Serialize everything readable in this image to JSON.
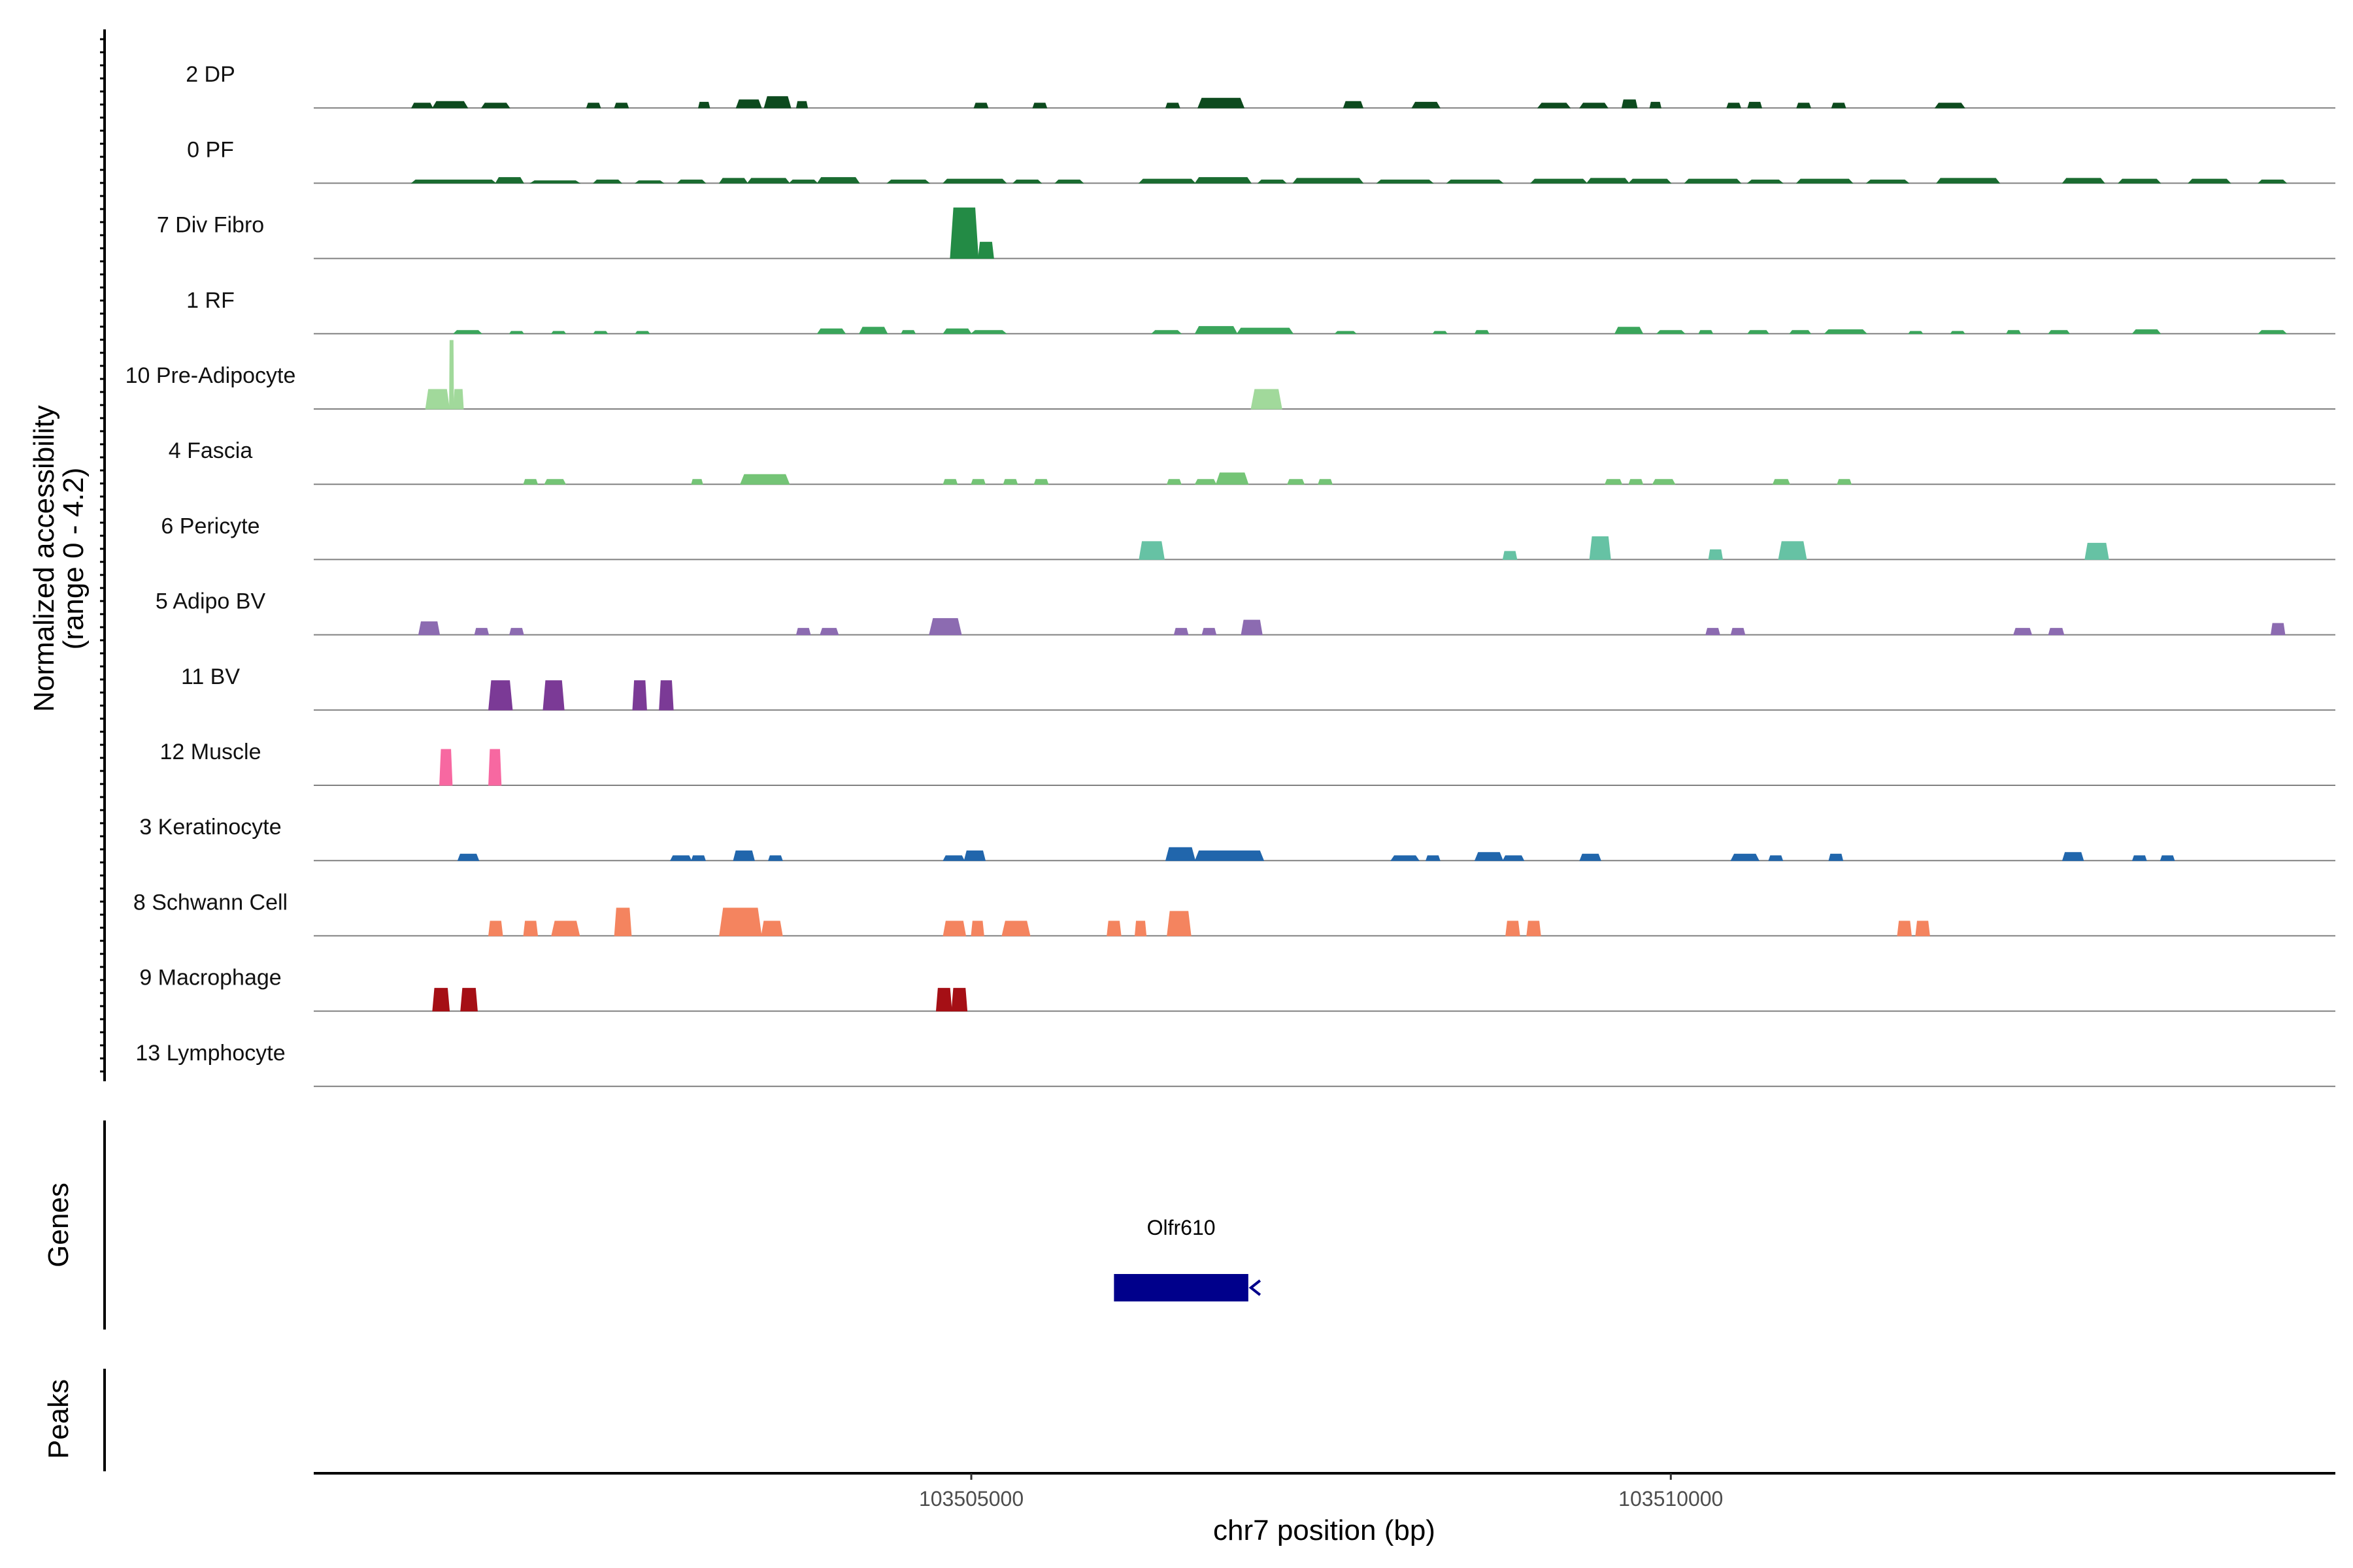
{
  "chart_data": {
    "type": "area",
    "chromosome": "chr7",
    "xlim": [
      103500300,
      103514750
    ],
    "x_ticks": [
      103505000,
      103510000
    ],
    "x_tick_labels": [
      "103505000",
      "103510000"
    ],
    "xlabel": "chr7 position (bp)",
    "ylabel_line1": "Normalized accessibility",
    "ylabel_line2": "(range 0 - 4.2)",
    "ylim": [
      0,
      4.2
    ],
    "tracks": [
      {
        "name": "2 DP",
        "color": "#0d4a1e",
        "peaks": [
          [
            103501000,
            103501150,
            0.3
          ],
          [
            103501150,
            103501400,
            0.4
          ],
          [
            103501500,
            103501700,
            0.3
          ],
          [
            103502250,
            103502350,
            0.3
          ],
          [
            103502450,
            103502550,
            0.3
          ],
          [
            103503050,
            103503130,
            0.35
          ],
          [
            103503320,
            103503500,
            0.5
          ],
          [
            103503520,
            103503710,
            0.7
          ],
          [
            103503750,
            103503830,
            0.4
          ],
          [
            103505020,
            103505120,
            0.3
          ],
          [
            103505440,
            103505540,
            0.3
          ],
          [
            103506390,
            103506490,
            0.3
          ],
          [
            103506620,
            103506950,
            0.6
          ],
          [
            103507660,
            103507800,
            0.4
          ],
          [
            103508150,
            103508350,
            0.35
          ],
          [
            103509050,
            103509280,
            0.3
          ],
          [
            103509350,
            103509550,
            0.3
          ],
          [
            103509650,
            103509760,
            0.5
          ],
          [
            103509850,
            103509930,
            0.35
          ],
          [
            103510400,
            103510500,
            0.3
          ],
          [
            103510550,
            103510650,
            0.35
          ],
          [
            103510900,
            103511000,
            0.3
          ],
          [
            103511150,
            103511250,
            0.3
          ],
          [
            103511890,
            103512100,
            0.3
          ]
        ]
      },
      {
        "name": "0 PF",
        "color": "#1a6b30",
        "peaks": [
          [
            103501000,
            103501600,
            0.2
          ],
          [
            103501600,
            103501800,
            0.35
          ],
          [
            103501850,
            103502200,
            0.15
          ],
          [
            103502300,
            103502500,
            0.2
          ],
          [
            103502600,
            103502800,
            0.15
          ],
          [
            103502900,
            103503100,
            0.2
          ],
          [
            103503200,
            103503400,
            0.3
          ],
          [
            103503400,
            103503700,
            0.3
          ],
          [
            103503700,
            103503900,
            0.2
          ],
          [
            103503900,
            103504200,
            0.35
          ],
          [
            103504400,
            103504700,
            0.2
          ],
          [
            103504800,
            103505250,
            0.25
          ],
          [
            103505300,
            103505500,
            0.2
          ],
          [
            103505600,
            103505800,
            0.2
          ],
          [
            103506200,
            103506600,
            0.25
          ],
          [
            103506600,
            103507000,
            0.35
          ],
          [
            103507050,
            103507250,
            0.2
          ],
          [
            103507300,
            103507800,
            0.3
          ],
          [
            103507900,
            103508300,
            0.2
          ],
          [
            103508400,
            103508800,
            0.2
          ],
          [
            103509000,
            103509400,
            0.25
          ],
          [
            103509400,
            103509700,
            0.3
          ],
          [
            103509700,
            103510000,
            0.25
          ],
          [
            103510100,
            103510500,
            0.25
          ],
          [
            103510550,
            103510800,
            0.2
          ],
          [
            103510900,
            103511300,
            0.25
          ],
          [
            103511400,
            103511700,
            0.2
          ],
          [
            103511900,
            103512350,
            0.3
          ],
          [
            103512800,
            103513100,
            0.3
          ],
          [
            103513200,
            103513500,
            0.25
          ],
          [
            103513700,
            103514000,
            0.25
          ],
          [
            103514200,
            103514400,
            0.2
          ]
        ]
      },
      {
        "name": "7 Div Fibro",
        "color": "#238b45",
        "peaks": [
          [
            103504850,
            103505050,
            3.1
          ],
          [
            103505050,
            103505160,
            1.0
          ]
        ]
      },
      {
        "name": "1 RF",
        "color": "#3aa55b",
        "peaks": [
          [
            103501300,
            103501500,
            0.2
          ],
          [
            103501700,
            103501800,
            0.15
          ],
          [
            103502000,
            103502100,
            0.15
          ],
          [
            103502300,
            103502400,
            0.15
          ],
          [
            103502600,
            103502700,
            0.15
          ],
          [
            103503900,
            103504100,
            0.3
          ],
          [
            103504200,
            103504400,
            0.4
          ],
          [
            103504500,
            103504600,
            0.2
          ],
          [
            103504800,
            103505000,
            0.3
          ],
          [
            103505000,
            103505250,
            0.2
          ],
          [
            103506290,
            103506500,
            0.2
          ],
          [
            103506600,
            103506900,
            0.45
          ],
          [
            103506900,
            103507300,
            0.35
          ],
          [
            103507600,
            103507750,
            0.15
          ],
          [
            103508300,
            103508400,
            0.15
          ],
          [
            103508600,
            103508700,
            0.2
          ],
          [
            103509600,
            103509800,
            0.4
          ],
          [
            103509900,
            103510100,
            0.2
          ],
          [
            103510200,
            103510300,
            0.2
          ],
          [
            103510550,
            103510700,
            0.2
          ],
          [
            103510850,
            103511000,
            0.2
          ],
          [
            103511100,
            103511400,
            0.25
          ],
          [
            103511700,
            103511800,
            0.15
          ],
          [
            103512000,
            103512100,
            0.15
          ],
          [
            103512400,
            103512500,
            0.2
          ],
          [
            103512700,
            103512850,
            0.2
          ],
          [
            103513300,
            103513500,
            0.25
          ],
          [
            103514200,
            103514400,
            0.2
          ]
        ]
      },
      {
        "name": "10 Pre-Adipocyte",
        "color": "#a1d99b",
        "peaks": [
          [
            103501100,
            103501270,
            1.2
          ],
          [
            103501270,
            103501300,
            4.2
          ],
          [
            103501300,
            103501370,
            1.2
          ],
          [
            103507000,
            103507220,
            1.2
          ]
        ]
      },
      {
        "name": "4 Fascia",
        "color": "#74c476",
        "peaks": [
          [
            103501800,
            103501900,
            0.3
          ],
          [
            103501950,
            103502100,
            0.3
          ],
          [
            103503000,
            103503080,
            0.3
          ],
          [
            103503350,
            103503700,
            0.6
          ],
          [
            103504800,
            103504900,
            0.3
          ],
          [
            103505000,
            103505100,
            0.3
          ],
          [
            103505230,
            103505330,
            0.3
          ],
          [
            103505450,
            103505550,
            0.3
          ],
          [
            103506400,
            103506500,
            0.3
          ],
          [
            103506600,
            103506750,
            0.3
          ],
          [
            103506750,
            103506980,
            0.7
          ],
          [
            103507260,
            103507380,
            0.3
          ],
          [
            103507480,
            103507580,
            0.3
          ],
          [
            103509530,
            103509650,
            0.3
          ],
          [
            103509700,
            103509800,
            0.3
          ],
          [
            103509870,
            103510030,
            0.3
          ],
          [
            103510730,
            103510850,
            0.3
          ],
          [
            103511190,
            103511290,
            0.3
          ]
        ]
      },
      {
        "name": "6 Pericyte",
        "color": "#66c2a4",
        "peaks": [
          [
            103506200,
            103506380,
            1.1
          ],
          [
            103508800,
            103508900,
            0.5
          ],
          [
            103509420,
            103509570,
            1.4
          ],
          [
            103510270,
            103510370,
            0.6
          ],
          [
            103510770,
            103510970,
            1.1
          ],
          [
            103512960,
            103513130,
            1.0
          ]
        ]
      },
      {
        "name": "5 Adipo BV",
        "color": "#8c6bb1",
        "peaks": [
          [
            103501050,
            103501200,
            0.8
          ],
          [
            103501450,
            103501550,
            0.4
          ],
          [
            103501700,
            103501800,
            0.4
          ],
          [
            103503750,
            103503850,
            0.4
          ],
          [
            103503920,
            103504050,
            0.4
          ],
          [
            103504700,
            103504930,
            1.0
          ],
          [
            103506450,
            103506550,
            0.4
          ],
          [
            103506650,
            103506750,
            0.4
          ],
          [
            103506930,
            103507080,
            0.9
          ],
          [
            103510250,
            103510350,
            0.4
          ],
          [
            103510430,
            103510530,
            0.4
          ],
          [
            103512450,
            103512580,
            0.4
          ],
          [
            103512700,
            103512810,
            0.4
          ],
          [
            103514290,
            103514390,
            0.7
          ]
        ]
      },
      {
        "name": "11 BV",
        "color": "#7b3a96",
        "peaks": [
          [
            103501550,
            103501720,
            1.8
          ],
          [
            103501940,
            103502090,
            1.8
          ],
          [
            103502580,
            103502680,
            1.8
          ],
          [
            103502770,
            103502870,
            1.8
          ]
        ]
      },
      {
        "name": "12 Muscle",
        "color": "#f768a1",
        "peaks": [
          [
            103501200,
            103501290,
            2.2
          ],
          [
            103501550,
            103501640,
            2.2
          ]
        ]
      },
      {
        "name": "3 Keratinocyte",
        "color": "#2166ac",
        "peaks": [
          [
            103501330,
            103501480,
            0.4
          ],
          [
            103502850,
            103503000,
            0.3
          ],
          [
            103503000,
            103503100,
            0.3
          ],
          [
            103503300,
            103503450,
            0.6
          ],
          [
            103503550,
            103503650,
            0.3
          ],
          [
            103504800,
            103504950,
            0.3
          ],
          [
            103504950,
            103505100,
            0.6
          ],
          [
            103506390,
            103506600,
            0.8
          ],
          [
            103506600,
            103507090,
            0.6
          ],
          [
            103508000,
            103508200,
            0.3
          ],
          [
            103508250,
            103508350,
            0.3
          ],
          [
            103508600,
            103508800,
            0.5
          ],
          [
            103508800,
            103508950,
            0.3
          ],
          [
            103509350,
            103509500,
            0.4
          ],
          [
            103510430,
            103510630,
            0.4
          ],
          [
            103510700,
            103510800,
            0.3
          ],
          [
            103511130,
            103511230,
            0.4
          ],
          [
            103512800,
            103512950,
            0.5
          ],
          [
            103513300,
            103513400,
            0.3
          ],
          [
            103513500,
            103513600,
            0.3
          ]
        ]
      },
      {
        "name": "8 Schwann Cell",
        "color": "#f4845f",
        "peaks": [
          [
            103501550,
            103501650,
            0.9
          ],
          [
            103501800,
            103501900,
            0.9
          ],
          [
            103502000,
            103502200,
            0.9
          ],
          [
            103502450,
            103502570,
            1.7
          ],
          [
            103503200,
            103503500,
            1.7
          ],
          [
            103503500,
            103503650,
            0.9
          ],
          [
            103504800,
            103504960,
            0.9
          ],
          [
            103505000,
            103505090,
            0.9
          ],
          [
            103505220,
            103505420,
            0.9
          ],
          [
            103505970,
            103506070,
            0.9
          ],
          [
            103506170,
            103506250,
            0.9
          ],
          [
            103506400,
            103506570,
            1.5
          ],
          [
            103508820,
            103508920,
            0.9
          ],
          [
            103508970,
            103509070,
            0.9
          ],
          [
            103511620,
            103511720,
            0.9
          ],
          [
            103511750,
            103511850,
            0.9
          ]
        ]
      },
      {
        "name": "9 Macrophage",
        "color": "#a50f15",
        "peaks": [
          [
            103501150,
            103501270,
            1.4
          ],
          [
            103501350,
            103501470,
            1.4
          ],
          [
            103504750,
            103504860,
            1.4
          ],
          [
            103504860,
            103504970,
            1.4
          ]
        ]
      },
      {
        "name": "13 Lymphocyte",
        "color": "#4b0082",
        "peaks": []
      }
    ],
    "genes_panel_title": "Genes",
    "peaks_panel_title": "Peaks",
    "genes": [
      {
        "name": "Olfr610",
        "start": 103506020,
        "end": 103506980,
        "strand": "-",
        "color": "#00008b"
      }
    ]
  }
}
